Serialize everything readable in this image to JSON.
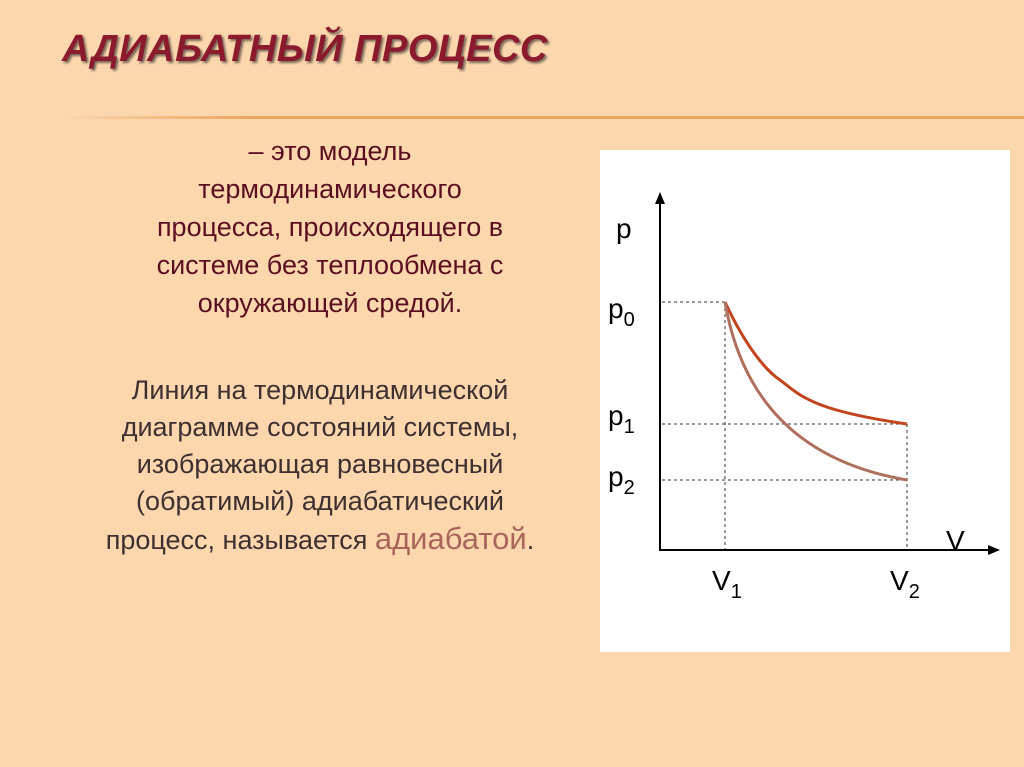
{
  "header": {
    "title": "АДИАБАТНЫЙ ПРОЦЕСС"
  },
  "definition": {
    "lines": [
      "– это модель",
      "термодинамического",
      "процесса, происходящего в",
      "системе без теплообмена с",
      "окружающей средой."
    ]
  },
  "paragraph": {
    "lines": [
      "Линия на термодинамической",
      "диаграмме состояний системы,",
      "изображающая равновесный",
      "(обратимый) адиабатический"
    ],
    "last_line": {
      "before": "процесс, называется",
      "term": "адиабатой",
      "after": "."
    }
  },
  "diagram": {
    "y_axis_label": "p",
    "x_axis_label": "V",
    "y_labels": [
      {
        "symbol": "p",
        "subscript": "0"
      },
      {
        "symbol": "p",
        "subscript": "1"
      },
      {
        "symbol": "p",
        "subscript": "2"
      }
    ],
    "x_labels": [
      {
        "symbol": "V",
        "subscript": "1"
      },
      {
        "symbol": "V",
        "subscript": "2"
      }
    ]
  }
}
